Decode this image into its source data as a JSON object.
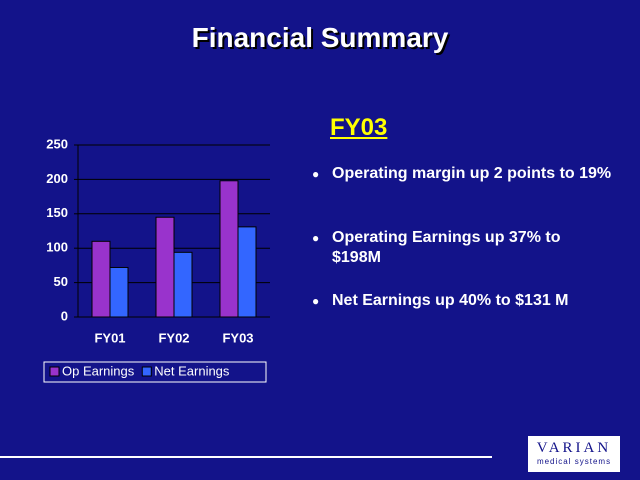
{
  "slide": {
    "title": "Financial Summary",
    "heading": "FY03",
    "bullets": [
      "Operating margin up 2 points to 19%",
      "Operating Earnings up 37% to $198M",
      "Net Earnings up 40% to $131 M"
    ],
    "logo": {
      "name": "VARIAN",
      "tagline": "medical systems"
    }
  },
  "chart_data": {
    "type": "bar",
    "categories": [
      "FY01",
      "FY02",
      "FY03"
    ],
    "series": [
      {
        "name": "Op Earnings",
        "color": "#9933cc",
        "values": [
          110,
          145,
          198
        ]
      },
      {
        "name": "Net Earnings",
        "color": "#3366ff",
        "values": [
          72,
          94,
          131
        ]
      }
    ],
    "ylim": [
      0,
      250
    ],
    "yticks": [
      0,
      50,
      100,
      150,
      200,
      250
    ],
    "grid": true,
    "legend": "bottom"
  }
}
